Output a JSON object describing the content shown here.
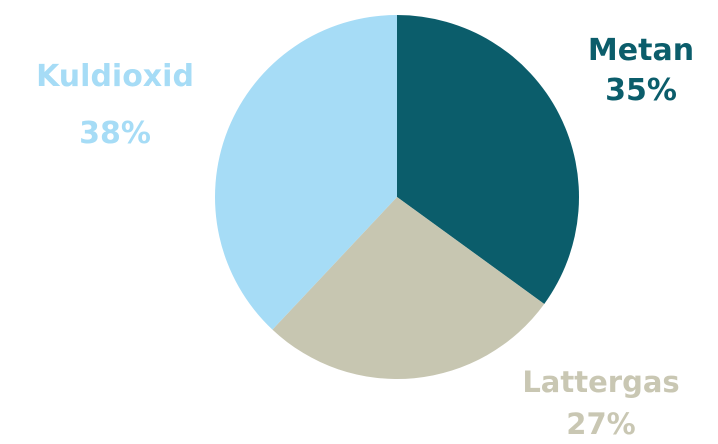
{
  "chart_data": {
    "type": "pie",
    "slices": [
      {
        "name": "Metan",
        "value": 35,
        "label": "35%",
        "color": "#0b5d6b",
        "text_color": "#0b5d6b"
      },
      {
        "name": "Lattergas",
        "value": 27,
        "label": "27%",
        "color": "#c7c6b1",
        "text_color": "#c9c7b3"
      },
      {
        "name": "Kuldioxid",
        "value": 38,
        "label": "38%",
        "color": "#a6dcf6",
        "text_color": "#a6dcf6"
      }
    ],
    "start": "12 o'clock",
    "direction": "clockwise",
    "legend": "none"
  }
}
